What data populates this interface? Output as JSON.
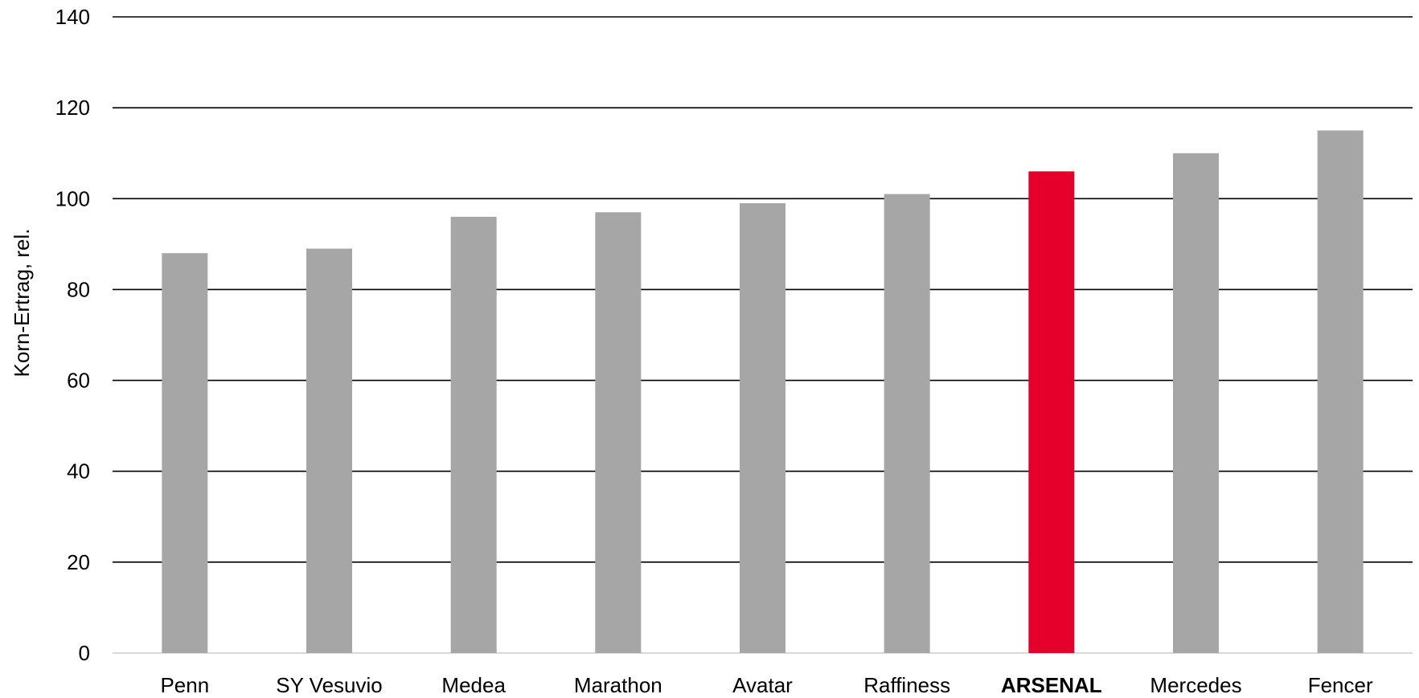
{
  "chart_data": {
    "type": "bar",
    "title": "",
    "xlabel": "",
    "ylabel": "Korn-Ertrag, rel.",
    "ylim": [
      0,
      140
    ],
    "yticks": [
      0,
      20,
      40,
      60,
      80,
      100,
      120,
      140
    ],
    "grid": true,
    "legend": "none",
    "categories": [
      "Penn",
      "SY Vesuvio",
      "Medea",
      "Marathon",
      "Avatar",
      "Raffiness",
      "ARSENAL",
      "Mercedes",
      "Fencer"
    ],
    "values": [
      88,
      89,
      96,
      97,
      99,
      101,
      106,
      110,
      115
    ],
    "highlight": "ARSENAL",
    "colors": {
      "bar": "#a6a6a6",
      "highlight": "#e4002b",
      "grid": "#000000",
      "baseline": "#d9d9d9",
      "text": "#000000"
    }
  }
}
